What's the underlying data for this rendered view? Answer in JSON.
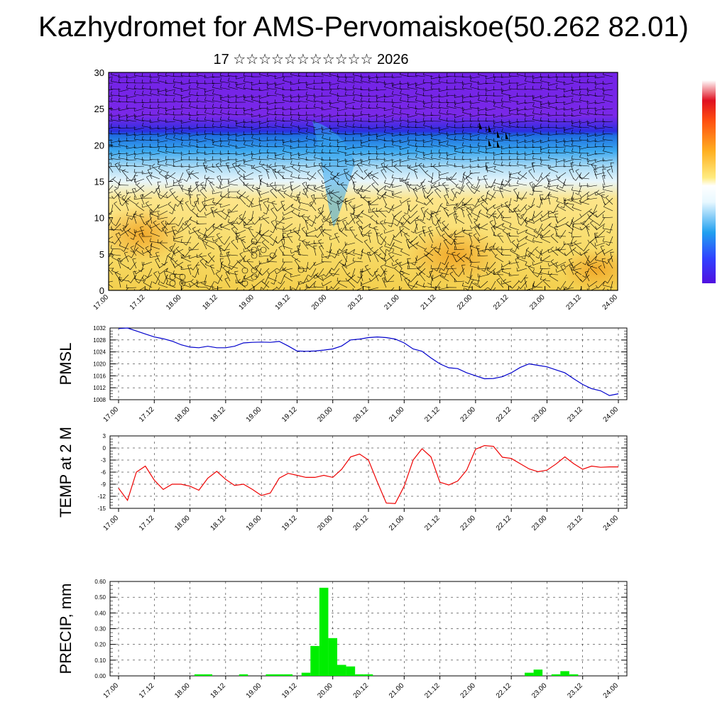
{
  "title": "Kazhydromet for AMS-Pervomaiskoe(50.262 82.01)",
  "subtitle": "17 ☆☆☆☆☆☆☆☆☆☆☆ 2026",
  "time_labels": [
    "17.00",
    "17.12",
    "18.00",
    "18.12",
    "19.00",
    "19.12",
    "20.00",
    "20.12",
    "21.00",
    "21.12",
    "22.00",
    "22.12",
    "23.00",
    "23.12",
    "24.00"
  ],
  "colors": {
    "pmsl_line": "#0000cc",
    "temp_line": "#ee0000",
    "precip_bar": "#00ee00",
    "wind_barb": "#000000"
  },
  "chart_data": [
    {
      "type": "heatmap",
      "ylim": [
        0,
        30
      ],
      "yticks": [
        0,
        5,
        10,
        15,
        20,
        25,
        30
      ],
      "colorbar": [
        "#ffffff",
        "#ff8c00",
        "#ffe070",
        "#ffffff",
        "#2aa0f0",
        "#4040e0",
        "#7020e0"
      ],
      "description_layers": "warm low levels, cold upper levels; wind barbs overlaid"
    },
    {
      "type": "line",
      "ylabel": "PMSL",
      "ylim": [
        1008,
        1032
      ],
      "yticks": [
        1008,
        1012,
        1016,
        1020,
        1024,
        1028,
        1032
      ],
      "x": [
        0,
        3,
        6,
        9,
        12,
        15,
        18,
        21,
        24,
        27,
        30,
        33,
        36,
        39,
        42,
        45,
        48,
        51,
        54,
        57,
        60,
        63,
        66,
        69,
        72,
        75,
        78,
        81,
        84,
        87,
        90,
        93,
        96,
        99,
        102,
        105,
        108,
        111,
        114,
        117,
        120,
        123,
        126,
        129,
        132,
        135,
        138,
        141,
        144,
        147,
        150,
        153,
        156,
        159,
        162,
        165,
        168
      ],
      "values": [
        1031.8,
        1032,
        1031,
        1030,
        1029,
        1028.4,
        1027.6,
        1026.4,
        1025.6,
        1025.4,
        1025.9,
        1025.4,
        1025.4,
        1025.9,
        1027,
        1027.2,
        1027.3,
        1027.2,
        1027.5,
        1026,
        1024.3,
        1024.2,
        1024.3,
        1024.6,
        1025,
        1026,
        1028,
        1028.3,
        1028.8,
        1029,
        1028.8,
        1028.3,
        1027,
        1025,
        1024.2,
        1022,
        1020,
        1018.7,
        1018.4,
        1017,
        1016,
        1015,
        1015.1,
        1015.7,
        1017,
        1018.8,
        1020,
        1019.5,
        1019,
        1018,
        1017,
        1015,
        1013.1,
        1011.7,
        1011,
        1009.4,
        1010
      ]
    },
    {
      "type": "line",
      "ylabel": "TEMP at 2 M",
      "ylim": [
        -15,
        3
      ],
      "yticks": [
        -15,
        -12,
        -9,
        -6,
        -3,
        0,
        3
      ],
      "x": [
        0,
        3,
        6,
        9,
        12,
        15,
        18,
        21,
        24,
        27,
        30,
        33,
        36,
        39,
        42,
        45,
        48,
        51,
        54,
        57,
        60,
        63,
        66,
        69,
        72,
        75,
        78,
        81,
        84,
        87,
        90,
        93,
        96,
        99,
        102,
        105,
        108,
        111,
        114,
        117,
        120,
        123,
        126,
        129,
        132,
        135,
        138,
        141,
        144,
        147,
        150,
        153,
        156,
        159,
        162,
        165,
        168
      ],
      "values": [
        -10,
        -13,
        -6,
        -4.5,
        -8,
        -10.3,
        -9,
        -9,
        -9.5,
        -10.5,
        -7.5,
        -5.8,
        -7.8,
        -9.3,
        -9,
        -10.3,
        -11.8,
        -11.2,
        -7.5,
        -6.3,
        -6.8,
        -7.3,
        -7.3,
        -6.8,
        -7.3,
        -5.3,
        -2.2,
        -1.5,
        -3,
        -8.5,
        -13.7,
        -13.8,
        -9.5,
        -3,
        -0.2,
        -2.2,
        -8.5,
        -9.2,
        -8.2,
        -5.5,
        -0.3,
        0.6,
        0.4,
        -2.3,
        -2.6,
        -3.9,
        -5.2,
        -5.9,
        -5.5,
        -4,
        -2.2,
        -3.9,
        -5.3,
        -4.5,
        -4.8,
        -4.7,
        -4.7
      ]
    },
    {
      "type": "bar",
      "ylabel": "PRECIP, mm",
      "ylim": [
        0,
        0.6
      ],
      "yticks": [
        0,
        0.1,
        0.2,
        0.3,
        0.4,
        0.5,
        0.6
      ],
      "ytick_labels": [
        "0.00",
        "0.10",
        "0.20",
        "0.30",
        "0.40",
        "0.50",
        "0.60"
      ],
      "bar_width_hours": 3,
      "x": [
        27,
        30,
        42,
        51,
        54,
        57,
        63,
        66,
        69,
        72,
        75,
        78,
        81,
        84,
        138,
        141,
        147,
        150,
        153
      ],
      "values": [
        0.01,
        0.01,
        0.01,
        0.01,
        0.01,
        0.01,
        0.02,
        0.19,
        0.56,
        0.24,
        0.07,
        0.06,
        0.01,
        0.01,
        0.02,
        0.04,
        0.01,
        0.03,
        0.01
      ]
    }
  ]
}
